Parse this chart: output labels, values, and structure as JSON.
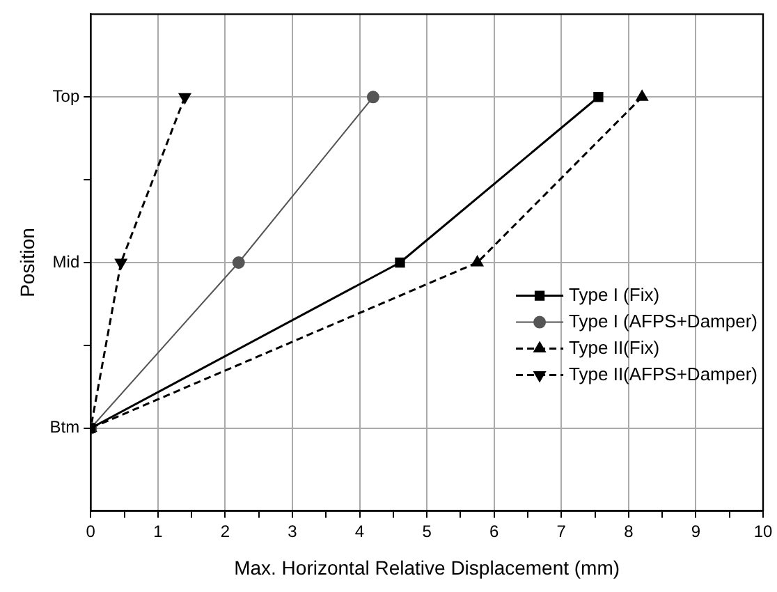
{
  "chart_data": {
    "type": "line",
    "orientation": "horizontal",
    "xlabel": "Max. Horizontal Relative Displacement (mm)",
    "ylabel": "Position",
    "categories": [
      "Top",
      "Mid",
      "Btm"
    ],
    "xlim": [
      0,
      10
    ],
    "xticks": [
      0,
      {
        "value": 0.5,
        "label": null
      },
      1,
      {
        "value": 1.5,
        "label": null
      },
      2,
      {
        "value": 2.5,
        "label": null
      },
      3,
      {
        "value": 3.5,
        "label": null
      },
      4,
      {
        "value": 4.5,
        "label": null
      },
      5,
      {
        "value": 5.5,
        "label": null
      },
      6,
      {
        "value": 6.5,
        "label": null
      },
      7,
      {
        "value": 7.5,
        "label": null
      },
      8,
      {
        "value": 8.5,
        "label": null
      },
      9,
      {
        "value": 9.5,
        "label": null
      },
      10
    ],
    "grid": true,
    "legend": "bottom right",
    "series": [
      {
        "name": "Type I (Fix)",
        "color": "#000000",
        "marker": "square",
        "line_style": "solid",
        "values": [
          7.55,
          4.6,
          0
        ]
      },
      {
        "name": "Type I (AFPS+Damper)",
        "color": "#555555",
        "marker": "circle",
        "line_style": "solid",
        "values": [
          4.2,
          2.2,
          0
        ]
      },
      {
        "name": "Type II(Fix)",
        "color": "#000000",
        "marker": "triangle",
        "line_style": "dashed",
        "values": [
          8.2,
          5.75,
          0
        ]
      },
      {
        "name": "Type II(AFPS+Damper)",
        "color": "#000000",
        "marker": "triangle-down",
        "line_style": "dashed",
        "values": [
          1.4,
          0.45,
          0
        ]
      }
    ]
  }
}
